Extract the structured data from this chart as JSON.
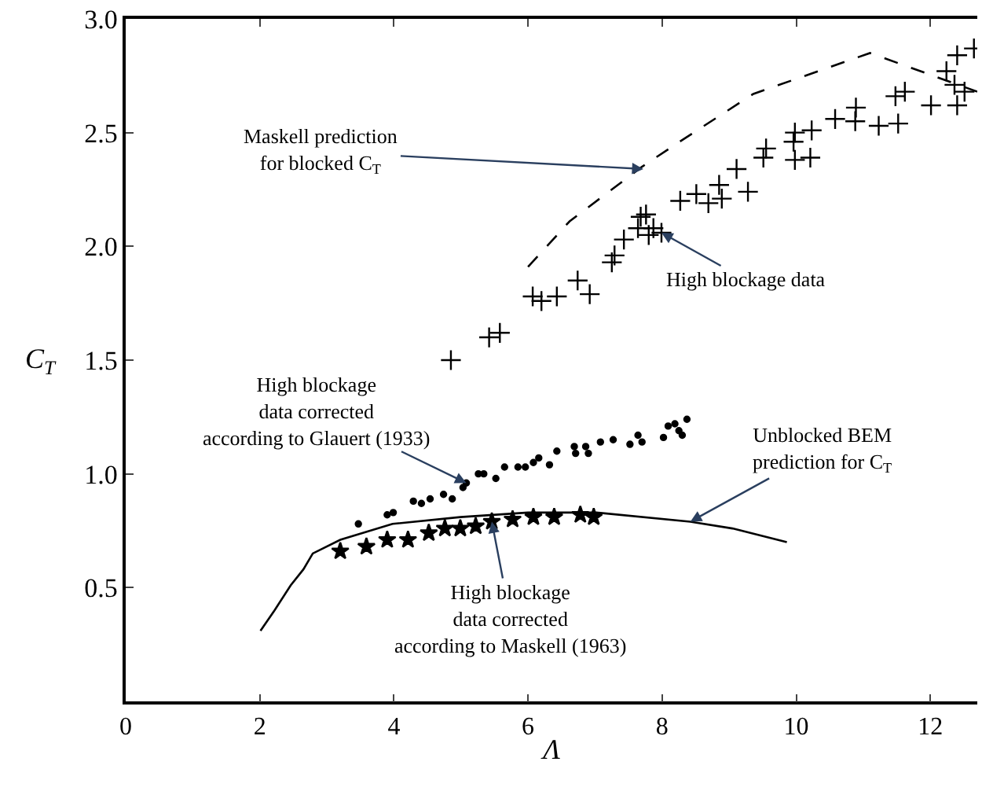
{
  "chart_data": {
    "type": "scatter",
    "xlabel": "Λ",
    "ylabel": "C$_{T}$",
    "xlim": [
      0,
      12.7
    ],
    "ylim": [
      0,
      3.0
    ],
    "xticks": [
      0,
      2,
      4,
      6,
      8,
      10,
      12
    ],
    "yticks": [
      {
        "value": 0.5,
        "label": "0.5"
      },
      {
        "value": 1.0,
        "label": "1.0"
      },
      {
        "value": 1.5,
        "label": "1.5"
      },
      {
        "value": 2.0,
        "label": "2.0"
      },
      {
        "value": 2.5,
        "label": "2.5"
      },
      {
        "value": 3.0,
        "label": "3.0"
      }
    ],
    "series": [
      {
        "type": "line",
        "line_style": "dashed",
        "marker": "none",
        "color": "#000000",
        "x": [
          6.0,
          6.62,
          7.7,
          8.26,
          9.36,
          11.1,
          12.7
        ],
        "values": [
          1.91,
          2.11,
          2.35,
          2.46,
          2.67,
          2.85,
          2.68
        ]
      },
      {
        "marker": "cross",
        "color": "#000000",
        "x": [
          4.85,
          5.42,
          5.58,
          6.07,
          6.2,
          6.43,
          6.74,
          6.92,
          7.25,
          7.29,
          7.43,
          7.64,
          7.68,
          7.76,
          7.8,
          7.87,
          7.99,
          8.27,
          8.51,
          8.69,
          8.85,
          8.89,
          9.11,
          9.28,
          9.51,
          9.55,
          9.98,
          9.96,
          9.98,
          10.21,
          10.23,
          10.58,
          10.88,
          10.89,
          11.23,
          11.52,
          11.48,
          11.62,
          12.01,
          12.4,
          12.24,
          12.36,
          12.51,
          12.4,
          12.65
        ],
        "values": [
          1.5,
          1.6,
          1.62,
          1.78,
          1.76,
          1.78,
          1.85,
          1.79,
          1.93,
          1.96,
          2.03,
          2.08,
          2.13,
          2.14,
          2.05,
          2.08,
          2.06,
          2.2,
          2.23,
          2.19,
          2.27,
          2.21,
          2.34,
          2.24,
          2.39,
          2.43,
          2.5,
          2.46,
          2.38,
          2.39,
          2.51,
          2.56,
          2.55,
          2.61,
          2.53,
          2.54,
          2.66,
          2.68,
          2.62,
          2.62,
          2.77,
          2.71,
          2.68,
          2.84,
          2.87
        ]
      },
      {
        "marker": "circle",
        "color": "#000000",
        "x": [
          3.47,
          3.9,
          3.99,
          4.29,
          4.41,
          4.54,
          4.74,
          4.87,
          5.03,
          5.08,
          5.26,
          5.34,
          5.52,
          5.65,
          5.85,
          5.96,
          6.08,
          6.16,
          6.32,
          6.43,
          6.69,
          6.71,
          6.86,
          6.9,
          7.08,
          7.27,
          7.52,
          7.64,
          7.7,
          8.02,
          8.09,
          8.19,
          8.25,
          8.37,
          8.3
        ],
        "values": [
          0.78,
          0.82,
          0.83,
          0.88,
          0.87,
          0.89,
          0.91,
          0.89,
          0.94,
          0.96,
          1.0,
          1.0,
          0.98,
          1.03,
          1.03,
          1.03,
          1.05,
          1.07,
          1.04,
          1.1,
          1.12,
          1.09,
          1.12,
          1.09,
          1.14,
          1.15,
          1.13,
          1.17,
          1.14,
          1.16,
          1.21,
          1.22,
          1.19,
          1.24,
          1.17
        ]
      },
      {
        "marker": "star",
        "color": "#000000",
        "x": [
          3.2,
          3.59,
          3.9,
          4.21,
          4.52,
          4.76,
          4.99,
          5.22,
          5.46,
          5.77,
          6.08,
          6.39,
          6.78,
          6.98
        ],
        "values": [
          0.66,
          0.68,
          0.71,
          0.71,
          0.74,
          0.76,
          0.76,
          0.77,
          0.79,
          0.8,
          0.81,
          0.81,
          0.82,
          0.81
        ]
      },
      {
        "type": "line",
        "line_style": "solid",
        "marker": "none",
        "color": "#000000",
        "x": [
          2.01,
          2.22,
          2.46,
          2.65,
          2.79,
          3.2,
          3.98,
          4.99,
          6.0,
          7.02,
          8.42,
          9.05,
          9.86
        ],
        "values": [
          0.31,
          0.4,
          0.51,
          0.58,
          0.65,
          0.71,
          0.78,
          0.81,
          0.83,
          0.83,
          0.79,
          0.76,
          0.7
        ]
      }
    ],
    "annotations": [
      {
        "text": "Maskell prediction\nfor blocked C$_{T}$",
        "x": 7.72,
        "y": 2.34
      },
      {
        "text": "High blockage data",
        "x": 7.99,
        "y": 2.06
      },
      {
        "text": "High blockage\ndata corrected\naccording to Glauert (1933)",
        "x": 5.08,
        "y": 0.96
      },
      {
        "text": "High blockage\ndata corrected\naccording to Maskell (1963)",
        "x": 5.46,
        "y": 0.79
      },
      {
        "text": "Unblocked BEM\nprediction for C$_{T}$",
        "x": 8.42,
        "y": 0.79
      }
    ]
  }
}
